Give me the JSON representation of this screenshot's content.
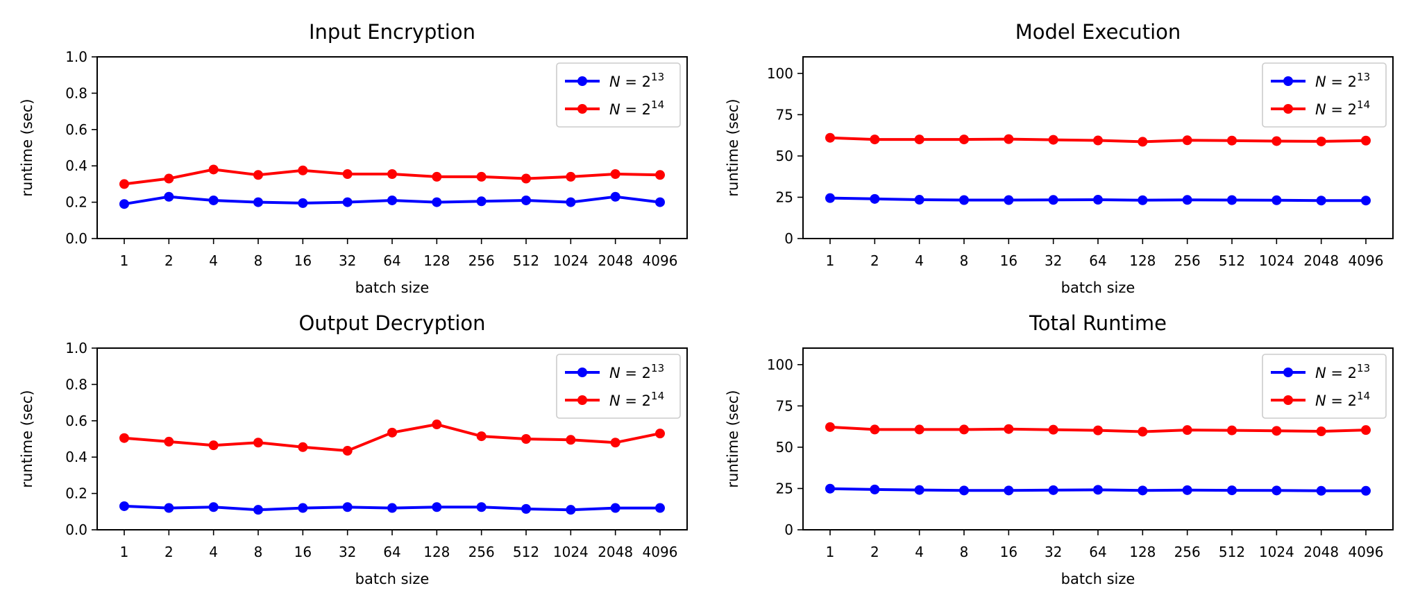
{
  "colors": {
    "n13": "#0000ff",
    "n14": "#ff0000"
  },
  "chart_data": [
    {
      "type": "line",
      "title": "Input Encryption",
      "xlabel": "batch size",
      "ylabel": "runtime (sec)",
      "categories": [
        "1",
        "2",
        "4",
        "8",
        "16",
        "32",
        "64",
        "128",
        "256",
        "512",
        "1024",
        "2048",
        "4096"
      ],
      "ylim": [
        0,
        1.0
      ],
      "yticks": [
        "0.0",
        "0.2",
        "0.4",
        "0.6",
        "0.8",
        "1.0"
      ],
      "legend_position": "upper right",
      "series": [
        {
          "name": "N = 2^13",
          "color": "#0000ff",
          "values": [
            0.19,
            0.23,
            0.21,
            0.2,
            0.195,
            0.2,
            0.21,
            0.2,
            0.205,
            0.21,
            0.2,
            0.23,
            0.2
          ]
        },
        {
          "name": "N = 2^14",
          "color": "#ff0000",
          "values": [
            0.3,
            0.33,
            0.38,
            0.35,
            0.375,
            0.355,
            0.355,
            0.34,
            0.34,
            0.33,
            0.34,
            0.355,
            0.35
          ]
        }
      ]
    },
    {
      "type": "line",
      "title": "Model Execution",
      "xlabel": "batch size",
      "ylabel": "runtime (sec)",
      "categories": [
        "1",
        "2",
        "4",
        "8",
        "16",
        "32",
        "64",
        "128",
        "256",
        "512",
        "1024",
        "2048",
        "4096"
      ],
      "ylim": [
        0,
        110
      ],
      "yticks": [
        "0",
        "25",
        "50",
        "75",
        "100"
      ],
      "legend_position": "upper right",
      "series": [
        {
          "name": "N = 2^13",
          "color": "#0000ff",
          "values": [
            24.5,
            24,
            23.5,
            23.3,
            23.3,
            23.4,
            23.5,
            23.2,
            23.4,
            23.3,
            23.2,
            23,
            23
          ]
        },
        {
          "name": "N = 2^14",
          "color": "#ff0000",
          "values": [
            61,
            60,
            60,
            60,
            60.2,
            59.8,
            59.4,
            58.6,
            59.5,
            59.3,
            59,
            58.8,
            59.3
          ]
        }
      ]
    },
    {
      "type": "line",
      "title": "Output Decryption",
      "xlabel": "batch size",
      "ylabel": "runtime (sec)",
      "categories": [
        "1",
        "2",
        "4",
        "8",
        "16",
        "32",
        "64",
        "128",
        "256",
        "512",
        "1024",
        "2048",
        "4096"
      ],
      "ylim": [
        0,
        1.0
      ],
      "yticks": [
        "0.0",
        "0.2",
        "0.4",
        "0.6",
        "0.8",
        "1.0"
      ],
      "legend_position": "upper right",
      "series": [
        {
          "name": "N = 2^13",
          "color": "#0000ff",
          "values": [
            0.13,
            0.12,
            0.125,
            0.11,
            0.12,
            0.125,
            0.12,
            0.125,
            0.125,
            0.115,
            0.11,
            0.12,
            0.12
          ]
        },
        {
          "name": "N = 2^14",
          "color": "#ff0000",
          "values": [
            0.505,
            0.485,
            0.465,
            0.48,
            0.455,
            0.435,
            0.535,
            0.58,
            0.515,
            0.5,
            0.495,
            0.48,
            0.53
          ]
        }
      ]
    },
    {
      "type": "line",
      "title": "Total Runtime",
      "xlabel": "batch size",
      "ylabel": "runtime (sec)",
      "categories": [
        "1",
        "2",
        "4",
        "8",
        "16",
        "32",
        "64",
        "128",
        "256",
        "512",
        "1024",
        "2048",
        "4096"
      ],
      "ylim": [
        0,
        110
      ],
      "yticks": [
        "0",
        "25",
        "50",
        "75",
        "100"
      ],
      "legend_position": "upper right",
      "series": [
        {
          "name": "N = 2^13",
          "color": "#0000ff",
          "values": [
            24.9,
            24.4,
            24.1,
            23.8,
            23.8,
            24,
            24.2,
            23.8,
            24,
            23.9,
            23.8,
            23.6,
            23.6
          ]
        },
        {
          "name": "N = 2^14",
          "color": "#ff0000",
          "values": [
            62.2,
            60.7,
            60.7,
            60.7,
            61,
            60.6,
            60.2,
            59.4,
            60.4,
            60.2,
            59.9,
            59.6,
            60.4
          ]
        }
      ]
    }
  ]
}
